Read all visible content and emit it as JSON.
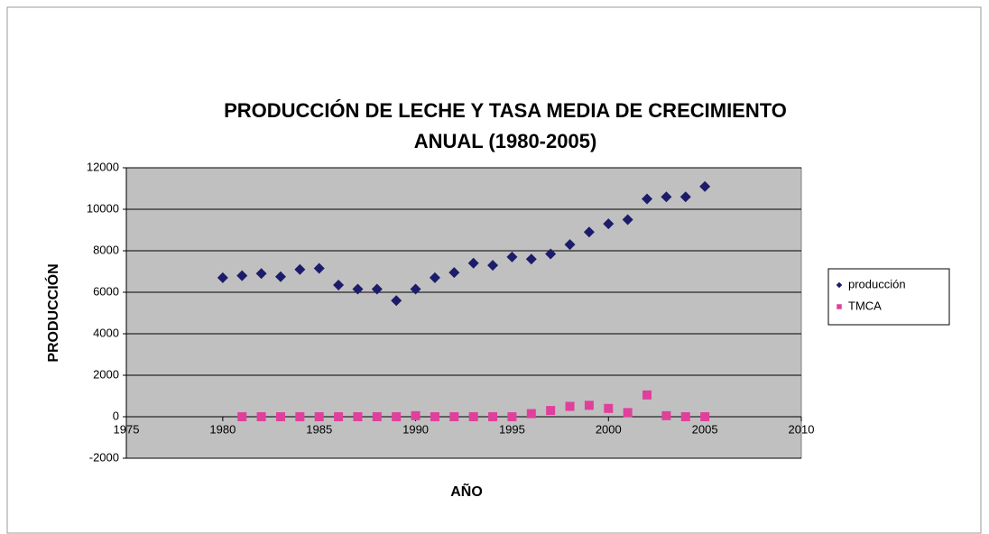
{
  "chart_data": {
    "type": "scatter",
    "title": [
      "PRODUCCIÓN DE LECHE Y TASA MEDIA DE CRECIMIENTO",
      "ANUAL (1980-2005)"
    ],
    "x_label": "AÑO",
    "y_label": "PRODUCCIÓN",
    "x": [
      1980,
      1981,
      1982,
      1983,
      1984,
      1985,
      1986,
      1987,
      1988,
      1989,
      1990,
      1991,
      1992,
      1993,
      1994,
      1995,
      1996,
      1997,
      1998,
      1999,
      2000,
      2001,
      2002,
      2003,
      2004,
      2005
    ],
    "series": [
      {
        "name": "producción",
        "color": "#1c1c6b",
        "marker": "diamond",
        "values": [
          6700,
          6800,
          6900,
          6750,
          7100,
          7150,
          6350,
          6150,
          6150,
          5600,
          6150,
          6700,
          6950,
          7400,
          7300,
          7700,
          7600,
          7850,
          8300,
          8900,
          9300,
          9500,
          10500,
          10600,
          10600,
          11100
        ]
      },
      {
        "name": "TMCA",
        "color": "#e0409c",
        "marker": "square",
        "values": [
          null,
          0,
          0,
          0,
          0,
          0,
          0,
          0,
          0,
          0,
          50,
          0,
          0,
          0,
          0,
          0,
          150,
          300,
          500,
          550,
          400,
          200,
          1050,
          50,
          0,
          0
        ]
      }
    ],
    "xlim": [
      1975,
      2010
    ],
    "xticks": [
      1975,
      1980,
      1985,
      1990,
      1995,
      2000,
      2005,
      2010
    ],
    "ylim": [
      -2000,
      12000
    ],
    "yticks": [
      -2000,
      0,
      2000,
      4000,
      6000,
      8000,
      10000,
      12000
    ],
    "grid": true,
    "legend": "right"
  }
}
